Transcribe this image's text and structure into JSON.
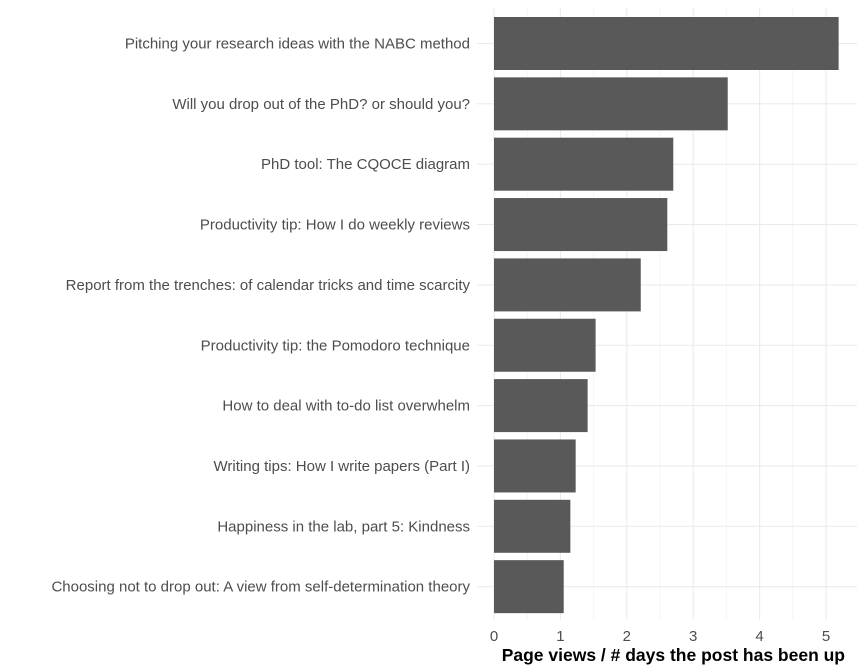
{
  "chart_data": {
    "type": "bar",
    "orientation": "horizontal",
    "title": "",
    "xlabel": "Page views / # days the post has been up",
    "ylabel": "",
    "categories": [
      "Pitching your research ideas with the NABC method",
      "Will you drop out of the PhD? or should you?",
      "PhD tool: The CQOCE diagram",
      "Productivity tip: How I do weekly reviews",
      "Report from the trenches: of calendar tricks and time scarcity",
      "Productivity tip: the Pomodoro technique",
      "How to deal with to-do list overwhelm",
      "Writing tips: How I write papers (Part I)",
      "Happiness in the lab, part 5: Kindness",
      "Choosing not to drop out: A view from self-determination theory"
    ],
    "values": [
      5.19,
      3.52,
      2.7,
      2.61,
      2.21,
      1.53,
      1.41,
      1.23,
      1.15,
      1.05
    ],
    "xlim": [
      0,
      5.45
    ],
    "xticks": [
      0,
      1,
      2,
      3,
      4,
      5
    ],
    "grid": true,
    "legend": "none",
    "colors": {
      "bar": "#595959",
      "grid_major": "#ebebeb",
      "grid_minor": "#f5f5f5",
      "label": "#4d4d4d",
      "title": "#000000",
      "background": "#ffffff"
    }
  }
}
